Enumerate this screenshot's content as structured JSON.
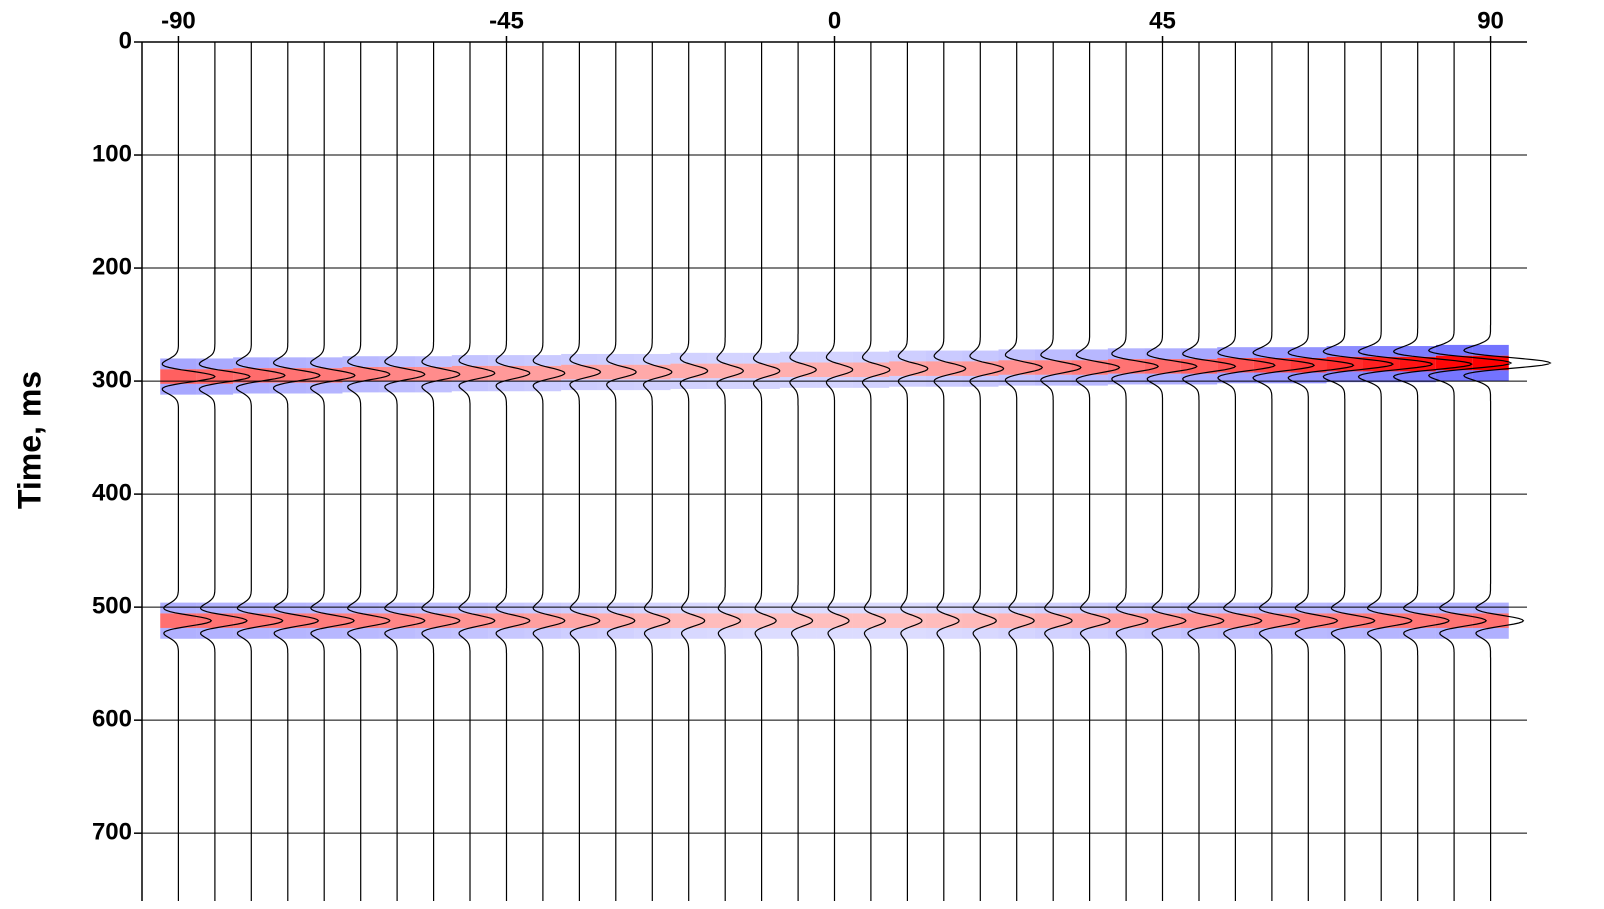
{
  "chart_data": {
    "type": "seismic",
    "ylabel": "Time, ms",
    "x": [
      -90,
      -85,
      -80,
      -75,
      -70,
      -65,
      -60,
      -55,
      -50,
      -45,
      -40,
      -35,
      -30,
      -25,
      -20,
      -15,
      -10,
      -5,
      0,
      5,
      10,
      15,
      20,
      25,
      30,
      35,
      40,
      45,
      50,
      55,
      60,
      65,
      70,
      75,
      80,
      85,
      90
    ],
    "series": [
      {
        "values": [
          296,
          296,
          295,
          295,
          295,
          294,
          294,
          294,
          293,
          293,
          293,
          292,
          292,
          292,
          291,
          291,
          291,
          290,
          290,
          290,
          289,
          289,
          289,
          288,
          288,
          288,
          287,
          287,
          287,
          286,
          286,
          286,
          285,
          285,
          285,
          284,
          284
        ],
        "amplitudes": [
          5,
          4.8,
          4.6,
          4.4,
          4.2,
          4,
          3.8,
          3.6,
          3.4,
          3.2,
          3,
          2.9,
          2.8,
          2.7,
          2.6,
          2.5,
          2.5,
          2.5,
          2.5,
          2.6,
          2.8,
          3,
          3.2,
          3.5,
          3.8,
          4.1,
          4.4,
          4.7,
          5,
          5.4,
          5.8,
          6.2,
          6.6,
          7,
          7.4,
          7.8,
          8.2
        ]
      },
      {
        "values": [
          512,
          512,
          512,
          512,
          512,
          512,
          512,
          512,
          512,
          512,
          512,
          512,
          512,
          512,
          512,
          512,
          512,
          512,
          512,
          512,
          512,
          512,
          512,
          512,
          512,
          512,
          512,
          512,
          512,
          512,
          512,
          512,
          512,
          512,
          512,
          512,
          512
        ],
        "amplitudes": [
          4.5,
          4.4,
          4.3,
          4.2,
          4.1,
          4,
          3.8,
          3.6,
          3.4,
          3.2,
          3,
          2.8,
          2.6,
          2.4,
          2.2,
          2.1,
          2,
          2,
          2,
          2,
          2,
          2.1,
          2.2,
          2.4,
          2.6,
          2.8,
          3,
          3.2,
          3.4,
          3.6,
          3.8,
          4,
          4.1,
          4.2,
          4.3,
          4.4,
          4.5
        ]
      }
    ],
    "positive_color": "#ff0000",
    "negative_color": "#0000ff",
    "line_color": "#000000",
    "xlim": [
      -95,
      95
    ],
    "xticks": [
      -90,
      -45,
      0,
      45,
      90
    ],
    "ylim": [
      0,
      760
    ],
    "yticks": [
      0,
      100,
      200,
      300,
      400,
      500,
      600,
      700
    ],
    "y_inverted": true,
    "x_axis_top": true,
    "grid": true
  }
}
